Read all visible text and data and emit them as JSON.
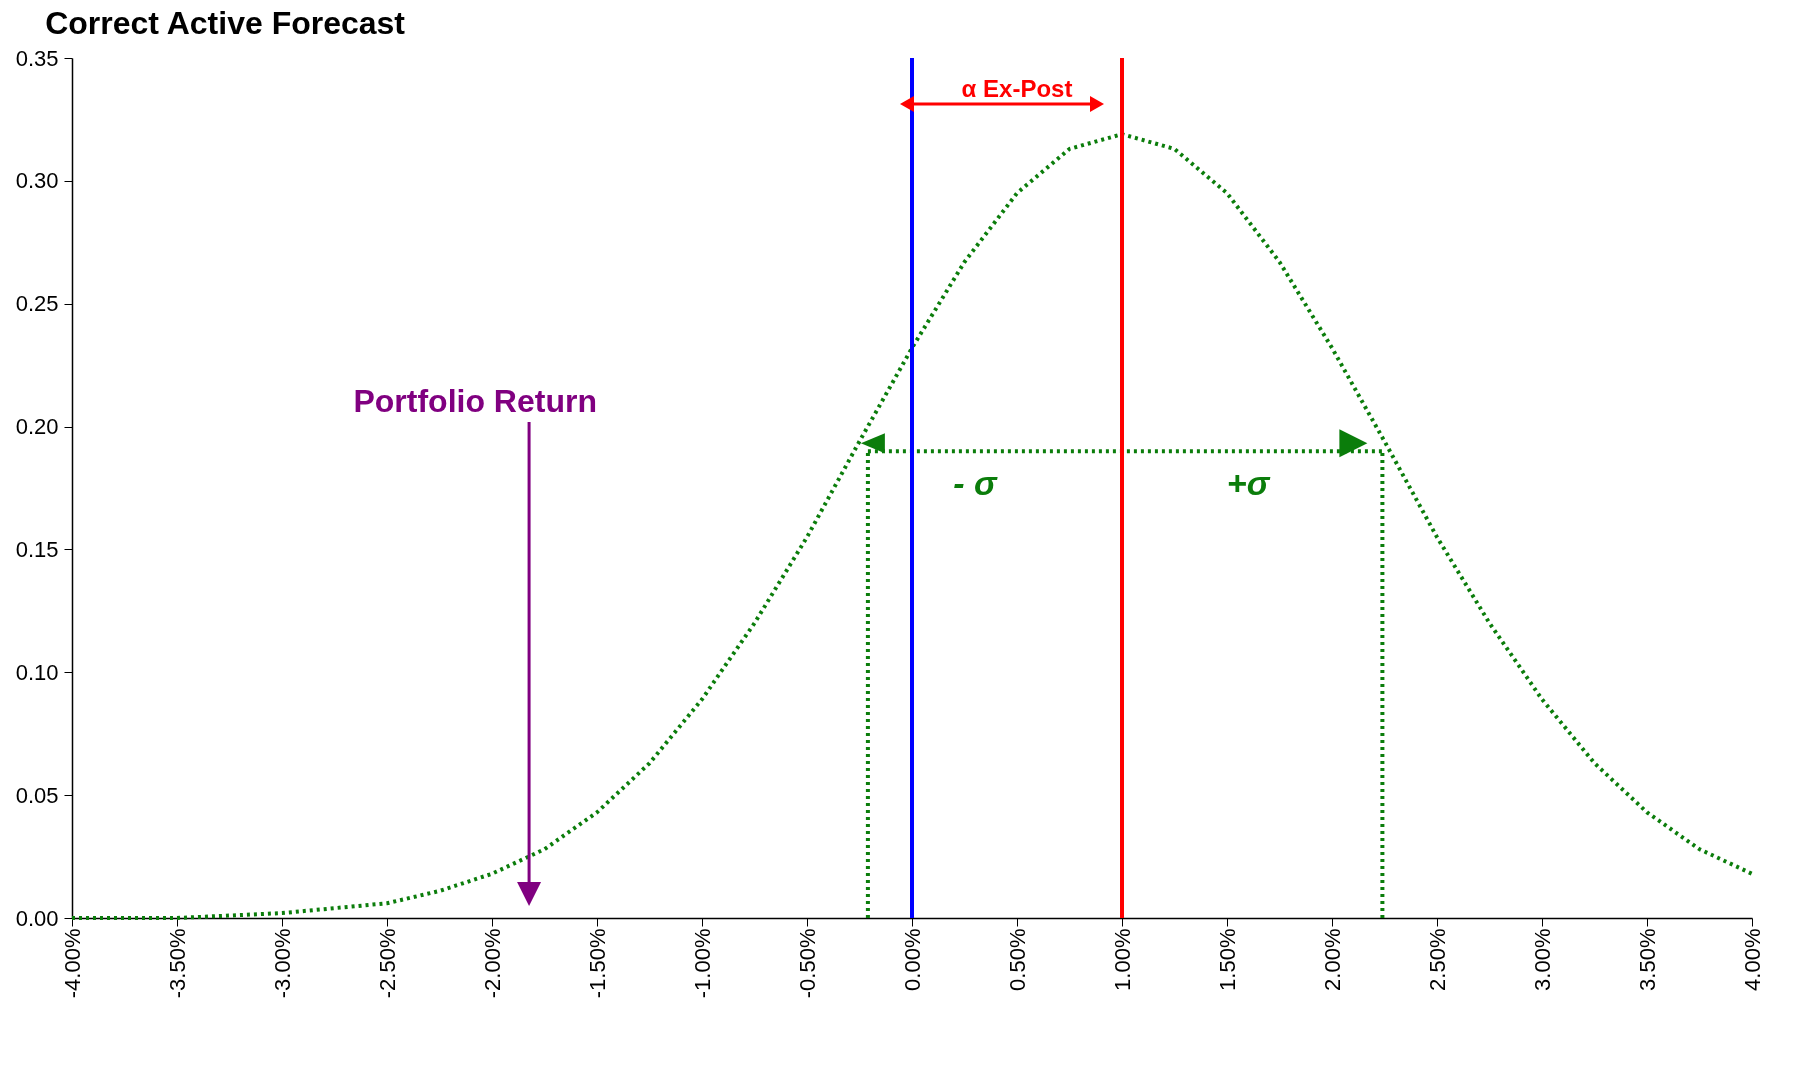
{
  "chart_data": {
    "type": "line",
    "title": "Correct Active Forecast",
    "xlim": [
      -4,
      4
    ],
    "ylim": [
      0,
      0.35
    ],
    "xticks": [
      {
        "value": -4,
        "label": "-4.00%"
      },
      {
        "value": -3.5,
        "label": "-3.50%"
      },
      {
        "value": -3,
        "label": "-3.00%"
      },
      {
        "value": -2.5,
        "label": "-2.50%"
      },
      {
        "value": -2,
        "label": "-2.00%"
      },
      {
        "value": -1.5,
        "label": "-1.50%"
      },
      {
        "value": -1,
        "label": "-1.00%"
      },
      {
        "value": -0.5,
        "label": "-0.50%"
      },
      {
        "value": 0,
        "label": "0.00%"
      },
      {
        "value": 0.5,
        "label": "0.50%"
      },
      {
        "value": 1,
        "label": "1.00%"
      },
      {
        "value": 1.5,
        "label": "1.50%"
      },
      {
        "value": 2,
        "label": "2.00%"
      },
      {
        "value": 2.5,
        "label": "2.50%"
      },
      {
        "value": 3,
        "label": "3.00%"
      },
      {
        "value": 3.5,
        "label": "3.50%"
      },
      {
        "value": 4,
        "label": "4.00%"
      }
    ],
    "yticks": [
      {
        "value": 0,
        "label": "0.00"
      },
      {
        "value": 0.05,
        "label": "0.05"
      },
      {
        "value": 0.1,
        "label": "0.10"
      },
      {
        "value": 0.15,
        "label": "0.15"
      },
      {
        "value": 0.2,
        "label": "0.20"
      },
      {
        "value": 0.25,
        "label": "0.25"
      },
      {
        "value": 0.3,
        "label": "0.30"
      },
      {
        "value": 0.35,
        "label": "0.35"
      }
    ],
    "line_style": "dotted",
    "series": [
      {
        "color": "#0b7d0b",
        "x": [
          -4,
          -3.75,
          -3.5,
          -3.25,
          -3,
          -2.75,
          -2.5,
          -2.25,
          -2,
          -1.75,
          -1.5,
          -1.25,
          -1,
          -0.75,
          -0.5,
          -0.25,
          0,
          0.25,
          0.5,
          0.75,
          1,
          1.25,
          1.5,
          1.75,
          2,
          2.25,
          2.5,
          2.75,
          3,
          3.25,
          3.5,
          3.75,
          4
        ],
        "values": [
          0.0,
          0.0,
          0.0,
          0.001,
          0.002,
          0.004,
          0.006,
          0.011,
          0.018,
          0.028,
          0.043,
          0.063,
          0.089,
          0.12,
          0.155,
          0.194,
          0.232,
          0.267,
          0.295,
          0.313,
          0.319,
          0.313,
          0.295,
          0.267,
          0.232,
          0.194,
          0.155,
          0.12,
          0.089,
          0.063,
          0.043,
          0.028,
          0.018
        ]
      },
      {
        "color": "#0b7d0b",
        "x": [
          -0.21,
          -0.21
        ],
        "values": [
          0,
          0.19
        ]
      },
      {
        "color": "#0b7d0b",
        "x": [
          2.24,
          2.24
        ],
        "values": [
          0,
          0.19
        ]
      },
      {
        "color": "#0b7d0b",
        "x": [
          -0.21,
          2.24
        ],
        "values": [
          0.19,
          0.19
        ]
      }
    ],
    "ref_lines": [
      {
        "axis": "x",
        "value": 0,
        "color": "#0000ff"
      },
      {
        "axis": "x",
        "value": 1,
        "color": "#ff0000"
      }
    ],
    "annotations": [
      {
        "text": "α  Ex-Post",
        "x": 1,
        "y": 0.328
      },
      "Portfolio Return",
      "-  σ",
      "+σ"
    ]
  }
}
